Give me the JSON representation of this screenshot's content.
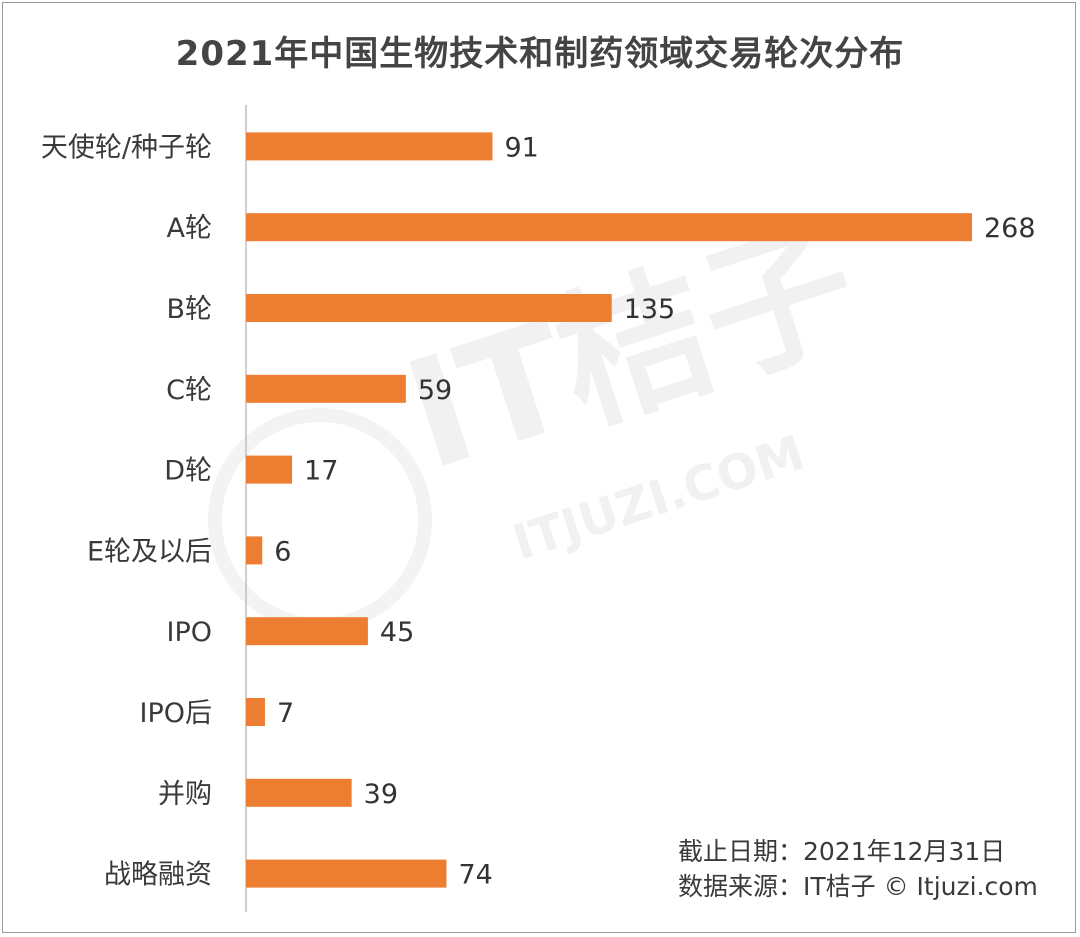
{
  "title": "2021年中国生物技术和制药领域交易轮次分布",
  "colors": {
    "bar": "#ED7D31",
    "axis": "#bfbfbf",
    "text": "#3a3a3a",
    "title": "#444444"
  },
  "watermark": {
    "brand": "IT桔子",
    "domain": "ITJUZI.COM"
  },
  "footnotes": {
    "date": "截止日期：2021年12月31日",
    "source": "数据来源：IT桔子 © Itjuzi.com"
  },
  "chart_data": {
    "type": "bar",
    "orientation": "horizontal",
    "title": "2021年中国生物技术和制药领域交易轮次分布",
    "categories": [
      "天使轮/种子轮",
      "A轮",
      "B轮",
      "C轮",
      "D轮",
      "E轮及以后",
      "IPO",
      "IPO后",
      "并购",
      "战略融资"
    ],
    "values": [
      91,
      268,
      135,
      59,
      17,
      6,
      45,
      7,
      39,
      74
    ],
    "xlim": [
      0,
      268
    ],
    "grid": false,
    "legend": "none",
    "data_labels": true
  }
}
